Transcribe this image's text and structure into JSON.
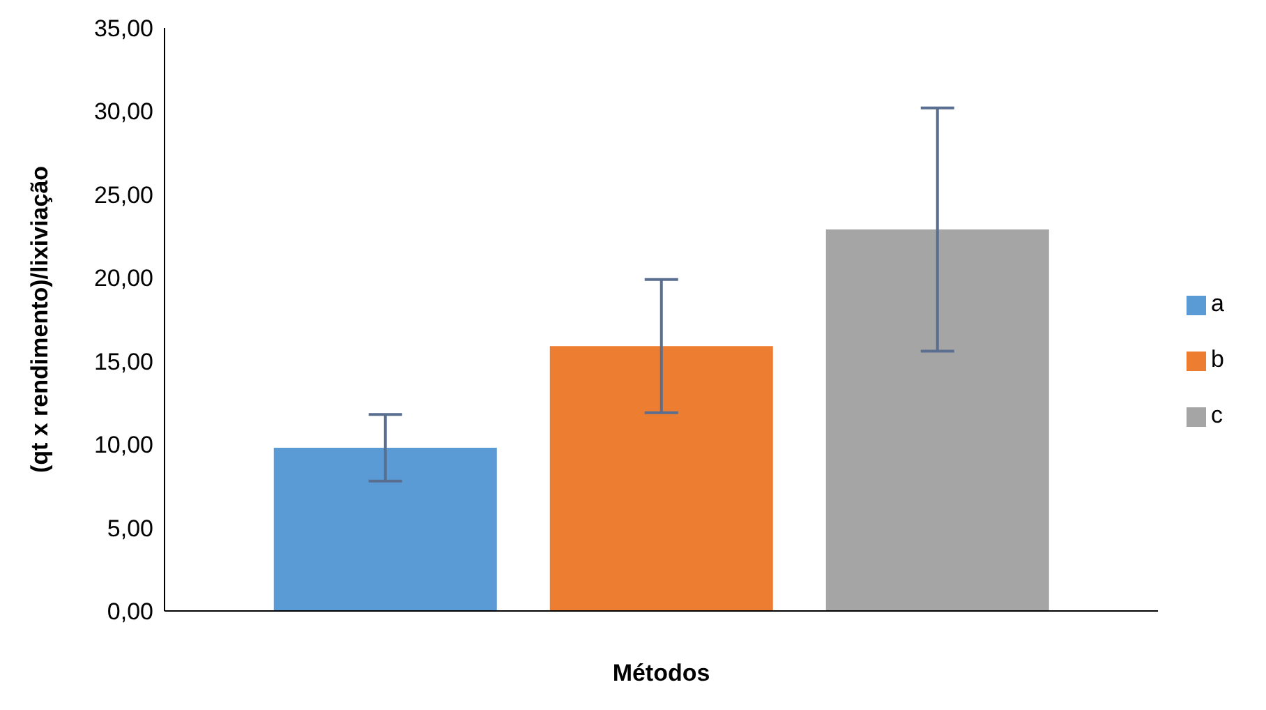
{
  "chart_data": {
    "type": "bar",
    "xlabel": "Métodos",
    "ylabel": "(qt x rendimento)/lixiviação",
    "categories": [
      null
    ],
    "series": [
      {
        "name": "a",
        "color": "#5b9bd5",
        "values": [
          9.8
        ],
        "errors": [
          2
        ]
      },
      {
        "name": "b",
        "color": "#ed7d31",
        "values": [
          15.9
        ],
        "errors": [
          4
        ]
      },
      {
        "name": "c",
        "color": "#a5a5a5",
        "values": [
          22.9
        ],
        "errors": [
          7.3
        ]
      }
    ],
    "ylim": [
      0,
      35
    ],
    "yticks": [
      {
        "value": 0,
        "label": "0,00"
      },
      {
        "value": 5,
        "label": "5,00"
      },
      {
        "value": 10,
        "label": "10,00"
      },
      {
        "value": 15,
        "label": "15,00"
      },
      {
        "value": 20,
        "label": "20,00"
      },
      {
        "value": 25,
        "label": "25,00"
      },
      {
        "value": 30,
        "label": "30,00"
      },
      {
        "value": 35,
        "label": "35,00"
      }
    ],
    "grid": false,
    "legend": "right"
  }
}
